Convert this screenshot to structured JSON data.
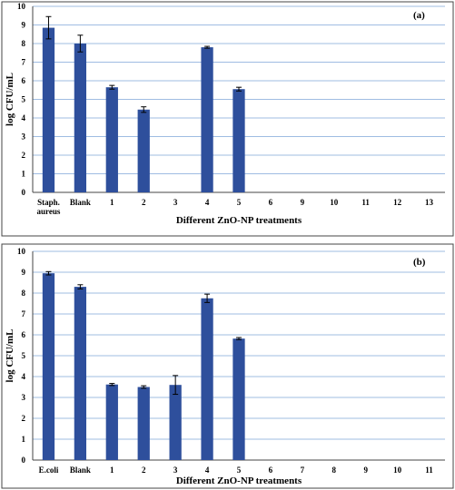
{
  "chart_data": [
    {
      "id": "a",
      "type": "bar",
      "panel_label": "(a)",
      "xlabel": "Different ZnO-NP treatments",
      "ylabel": "log CFU/mL",
      "ylim": [
        0,
        10
      ],
      "yticks": [
        0,
        1,
        2,
        3,
        4,
        5,
        6,
        7,
        8,
        9,
        10
      ],
      "grid": true,
      "categories": [
        [
          "Staph.",
          "aureus"
        ],
        [
          "Blank"
        ],
        [
          "1"
        ],
        [
          "2"
        ],
        [
          "3"
        ],
        [
          "4"
        ],
        [
          "5"
        ],
        [
          "6"
        ],
        [
          "9"
        ],
        [
          "10"
        ],
        [
          "11"
        ],
        [
          "12"
        ],
        [
          "13"
        ]
      ],
      "values": [
        8.85,
        8.0,
        5.65,
        4.45,
        0,
        7.8,
        5.55,
        0,
        0,
        0,
        0,
        0,
        0
      ],
      "errors": [
        0.6,
        0.45,
        0.1,
        0.15,
        0,
        0.05,
        0.1,
        0,
        0,
        0,
        0,
        0,
        0
      ],
      "bar_color": "#2E4F9C"
    },
    {
      "id": "b",
      "type": "bar",
      "panel_label": "(b)",
      "xlabel": "Different ZnO-NP treatments",
      "ylabel": "log CFU/mL",
      "ylim": [
        0,
        10
      ],
      "yticks": [
        0,
        1,
        2,
        3,
        4,
        5,
        6,
        7,
        8,
        9,
        10
      ],
      "grid": true,
      "categories": [
        [
          "E.coli"
        ],
        [
          "Blank"
        ],
        [
          "1"
        ],
        [
          "2"
        ],
        [
          "3"
        ],
        [
          "4"
        ],
        [
          "5"
        ],
        [
          "6"
        ],
        [
          "7"
        ],
        [
          "8"
        ],
        [
          "9"
        ],
        [
          "10"
        ],
        [
          "11"
        ]
      ],
      "values": [
        8.95,
        8.3,
        3.62,
        3.5,
        3.6,
        7.75,
        5.82,
        0,
        0,
        0,
        0,
        0,
        0
      ],
      "errors": [
        0.08,
        0.1,
        0.05,
        0.06,
        0.45,
        0.2,
        0.05,
        0,
        0,
        0,
        0,
        0,
        0
      ],
      "bar_color": "#2E4F9C"
    }
  ]
}
